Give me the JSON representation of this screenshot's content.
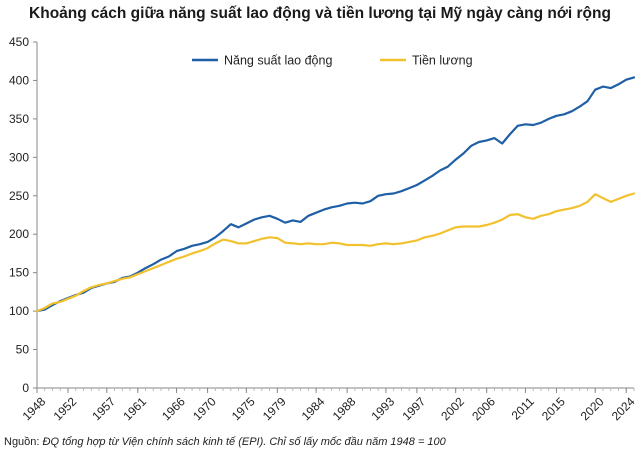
{
  "chart_data": {
    "type": "line",
    "title": "Khoảng cách giữa năng suất lao động và tiền lương tại Mỹ ngày càng nới rộng",
    "xlabel": "",
    "ylabel": "",
    "xlim": [
      1948,
      2025
    ],
    "ylim": [
      0,
      450
    ],
    "y_ticks": [
      0,
      50,
      100,
      150,
      200,
      250,
      300,
      350,
      400,
      450
    ],
    "x_ticks": [
      1948,
      1952,
      1957,
      1961,
      1966,
      1970,
      1975,
      1979,
      1984,
      1988,
      1993,
      1997,
      2002,
      2006,
      2011,
      2015,
      2020,
      2024
    ],
    "grid": false,
    "legend_position": "top",
    "series": [
      {
        "name": "Năng suất lao động",
        "color": "#1f5fa6",
        "x": [
          1948,
          1949,
          1950,
          1951,
          1952,
          1953,
          1954,
          1955,
          1956,
          1957,
          1958,
          1959,
          1960,
          1961,
          1962,
          1963,
          1964,
          1965,
          1966,
          1967,
          1968,
          1969,
          1970,
          1971,
          1972,
          1973,
          1974,
          1975,
          1976,
          1977,
          1978,
          1979,
          1980,
          1981,
          1982,
          1983,
          1984,
          1985,
          1986,
          1987,
          1988,
          1989,
          1990,
          1991,
          1992,
          1993,
          1994,
          1995,
          1996,
          1997,
          1998,
          1999,
          2000,
          2001,
          2002,
          2003,
          2004,
          2005,
          2006,
          2007,
          2008,
          2009,
          2010,
          2011,
          2012,
          2013,
          2014,
          2015,
          2016,
          2017,
          2018,
          2019,
          2020,
          2021,
          2022,
          2023,
          2024,
          2025
        ],
        "values": [
          100,
          102,
          108,
          113,
          117,
          121,
          124,
          130,
          133,
          136,
          138,
          143,
          145,
          150,
          156,
          161,
          167,
          171,
          178,
          181,
          185,
          187,
          190,
          196,
          204,
          213,
          209,
          214,
          219,
          222,
          224,
          220,
          215,
          218,
          216,
          224,
          228,
          232,
          235,
          237,
          240,
          241,
          240,
          243,
          250,
          252,
          253,
          256,
          260,
          264,
          270,
          276,
          283,
          288,
          297,
          305,
          315,
          320,
          322,
          325,
          318,
          330,
          341,
          343,
          342,
          345,
          350,
          354,
          356,
          360,
          366,
          373,
          388,
          392,
          390,
          395,
          401,
          404
        ]
      },
      {
        "name": "Tiền lương",
        "color": "#f2c12e",
        "x": [
          1948,
          1949,
          1950,
          1951,
          1952,
          1953,
          1954,
          1955,
          1956,
          1957,
          1958,
          1959,
          1960,
          1961,
          1962,
          1963,
          1964,
          1965,
          1966,
          1967,
          1968,
          1969,
          1970,
          1971,
          1972,
          1973,
          1974,
          1975,
          1976,
          1977,
          1978,
          1979,
          1980,
          1981,
          1982,
          1983,
          1984,
          1985,
          1986,
          1987,
          1988,
          1989,
          1990,
          1991,
          1992,
          1993,
          1994,
          1995,
          1996,
          1997,
          1998,
          1999,
          2000,
          2001,
          2002,
          2003,
          2004,
          2005,
          2006,
          2007,
          2008,
          2009,
          2010,
          2011,
          2012,
          2013,
          2014,
          2015,
          2016,
          2017,
          2018,
          2019,
          2020,
          2021,
          2022,
          2023,
          2024,
          2025
        ],
        "values": [
          100,
          104,
          110,
          112,
          116,
          120,
          126,
          131,
          134,
          136,
          139,
          142,
          144,
          148,
          152,
          156,
          160,
          164,
          168,
          171,
          175,
          178,
          182,
          188,
          193,
          191,
          188,
          188,
          191,
          194,
          196,
          195,
          189,
          188,
          187,
          188,
          187,
          187,
          189,
          188,
          186,
          186,
          186,
          185,
          187,
          188,
          187,
          188,
          190,
          192,
          196,
          198,
          201,
          205,
          209,
          210,
          210,
          210,
          212,
          215,
          219,
          225,
          226,
          222,
          220,
          224,
          226,
          230,
          232,
          234,
          237,
          242,
          252,
          247,
          242,
          246,
          250,
          253
        ]
      }
    ]
  },
  "source": {
    "label": "Nguồn:",
    "text": "ĐQ tổng hợp từ Viện chính sách kinh tế (EPI). Chỉ số lấy mốc đầu năm 1948 = 100"
  }
}
